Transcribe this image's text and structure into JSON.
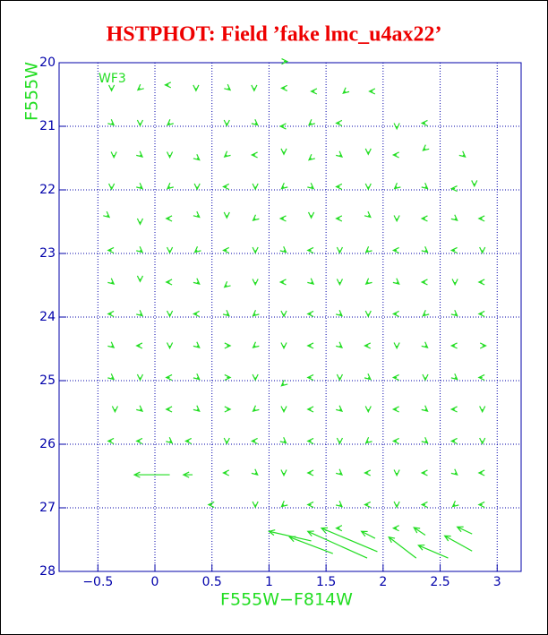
{
  "chart_data": {
    "type": "quiver",
    "title": "HSTPHOT: Field ’fake lmc_u4ax22’",
    "xlabel": "F555W−F814W",
    "ylabel": "F555W",
    "annotation": "WF3",
    "xlim": [
      -0.84,
      3.21
    ],
    "ylim": [
      20,
      28
    ],
    "y_inverted": true,
    "xticks": [
      {
        "value": -0.5,
        "label": "−0.5"
      },
      0,
      0.5,
      1,
      1.5,
      2,
      2.5,
      3
    ],
    "yticks": [
      20,
      21,
      22,
      23,
      24,
      25,
      26,
      27,
      28
    ],
    "grid": true,
    "color": "#22dd22",
    "axis_color": "#0000aa",
    "title_color": "#ee0000",
    "vectors": [
      [
        1.13,
        19.98,
        0.03,
        0
      ],
      [
        -0.38,
        20.4,
        0,
        0.04
      ],
      [
        -0.13,
        20.4,
        -0.02,
        0.03
      ],
      [
        0.12,
        20.35,
        -0.03,
        0
      ],
      [
        0.36,
        20.4,
        0,
        0.04
      ],
      [
        0.64,
        20.4,
        0.02,
        0.03
      ],
      [
        0.87,
        20.4,
        0,
        0.04
      ],
      [
        1.14,
        20.4,
        -0.03,
        0
      ],
      [
        1.4,
        20.45,
        -0.03,
        0
      ],
      [
        1.67,
        20.45,
        -0.02,
        0.03
      ],
      [
        1.91,
        20.45,
        -0.03,
        0
      ],
      [
        -0.38,
        20.95,
        0.02,
        0.03
      ],
      [
        -0.13,
        20.95,
        0,
        0.04
      ],
      [
        0.13,
        20.95,
        -0.02,
        0.03
      ],
      [
        0.63,
        20.95,
        0,
        0.04
      ],
      [
        0.88,
        20.95,
        0.02,
        0.03
      ],
      [
        1.13,
        21.0,
        -0.03,
        0
      ],
      [
        1.37,
        20.95,
        -0.02,
        0.03
      ],
      [
        1.62,
        20.95,
        -0.03,
        0
      ],
      [
        2.12,
        21.0,
        0,
        0.04
      ],
      [
        2.37,
        20.95,
        -0.03,
        0
      ],
      [
        -0.36,
        21.45,
        0,
        0.04
      ],
      [
        -0.13,
        21.45,
        0.02,
        0.03
      ],
      [
        0.13,
        21.45,
        0,
        0.04
      ],
      [
        0.37,
        21.5,
        0.02,
        0.03
      ],
      [
        0.63,
        21.45,
        -0.02,
        0.03
      ],
      [
        0.88,
        21.45,
        -0.03,
        0
      ],
      [
        1.13,
        21.4,
        0,
        0.04
      ],
      [
        1.37,
        21.5,
        -0.02,
        0.03
      ],
      [
        1.62,
        21.45,
        0.02,
        0.03
      ],
      [
        1.87,
        21.4,
        0,
        0.04
      ],
      [
        2.12,
        21.45,
        -0.03,
        0
      ],
      [
        2.37,
        21.35,
        -0.02,
        0.03
      ],
      [
        2.7,
        21.45,
        0.02,
        0.03
      ],
      [
        -0.38,
        21.95,
        0,
        0.04
      ],
      [
        -0.13,
        21.95,
        0.02,
        0.03
      ],
      [
        0.13,
        21.95,
        -0.02,
        0.03
      ],
      [
        0.37,
        21.95,
        0,
        0.04
      ],
      [
        0.63,
        21.95,
        -0.03,
        0
      ],
      [
        0.88,
        21.95,
        0,
        0.04
      ],
      [
        1.13,
        21.95,
        -0.02,
        0.03
      ],
      [
        1.37,
        21.95,
        0.02,
        0.03
      ],
      [
        1.62,
        21.95,
        -0.03,
        0
      ],
      [
        1.87,
        21.95,
        0,
        0.04
      ],
      [
        2.12,
        21.95,
        -0.02,
        0.03
      ],
      [
        2.37,
        21.95,
        0.02,
        0.03
      ],
      [
        2.63,
        21.98,
        -0.03,
        0
      ],
      [
        2.8,
        21.9,
        0,
        0.04
      ],
      [
        -0.42,
        22.4,
        0.02,
        0.03
      ],
      [
        -0.13,
        22.5,
        0,
        0.04
      ],
      [
        0.13,
        22.45,
        -0.03,
        0
      ],
      [
        0.37,
        22.4,
        0.02,
        0.03
      ],
      [
        0.63,
        22.4,
        0,
        0.04
      ],
      [
        0.88,
        22.45,
        -0.02,
        0.03
      ],
      [
        1.13,
        22.45,
        -0.03,
        0
      ],
      [
        1.37,
        22.4,
        0,
        0.04
      ],
      [
        1.62,
        22.45,
        -0.03,
        0
      ],
      [
        1.87,
        22.4,
        0.02,
        0.03
      ],
      [
        2.12,
        22.45,
        0,
        0.04
      ],
      [
        2.37,
        22.45,
        -0.03,
        0
      ],
      [
        2.63,
        22.45,
        0.02,
        0.03
      ],
      [
        2.87,
        22.45,
        -0.03,
        0
      ],
      [
        -0.38,
        22.95,
        -0.03,
        0
      ],
      [
        -0.13,
        22.95,
        0.02,
        0.03
      ],
      [
        0.13,
        22.95,
        0,
        0.04
      ],
      [
        0.37,
        22.95,
        -0.02,
        0.03
      ],
      [
        0.63,
        22.95,
        -0.03,
        0
      ],
      [
        0.88,
        22.95,
        0,
        0.04
      ],
      [
        1.13,
        22.95,
        0.02,
        0.03
      ],
      [
        1.37,
        22.95,
        -0.03,
        0
      ],
      [
        1.62,
        22.95,
        0,
        0.04
      ],
      [
        1.87,
        22.95,
        -0.02,
        0.03
      ],
      [
        2.12,
        22.95,
        -0.03,
        0
      ],
      [
        2.37,
        22.95,
        0.02,
        0.03
      ],
      [
        2.63,
        22.95,
        -0.03,
        0
      ],
      [
        2.87,
        22.95,
        0,
        0.04
      ],
      [
        -0.38,
        23.45,
        0.02,
        0.03
      ],
      [
        -0.13,
        23.4,
        0,
        0.04
      ],
      [
        0.13,
        23.45,
        -0.03,
        0
      ],
      [
        0.37,
        23.45,
        0.02,
        0.03
      ],
      [
        0.63,
        23.5,
        -0.02,
        0.03
      ],
      [
        0.88,
        23.45,
        0,
        0.04
      ],
      [
        1.13,
        23.45,
        -0.03,
        0
      ],
      [
        1.37,
        23.45,
        0.02,
        0.03
      ],
      [
        1.62,
        23.45,
        0,
        0.04
      ],
      [
        1.87,
        23.45,
        -0.02,
        0.03
      ],
      [
        2.12,
        23.45,
        0.02,
        0.03
      ],
      [
        2.37,
        23.45,
        -0.03,
        0
      ],
      [
        2.63,
        23.45,
        0,
        0.04
      ],
      [
        2.87,
        23.45,
        -0.03,
        0
      ],
      [
        -0.38,
        23.95,
        -0.03,
        0
      ],
      [
        -0.13,
        23.95,
        0.02,
        0.03
      ],
      [
        0.13,
        23.95,
        0,
        0.04
      ],
      [
        0.37,
        23.95,
        -0.03,
        0
      ],
      [
        0.63,
        23.95,
        0.02,
        0.03
      ],
      [
        0.88,
        23.95,
        -0.02,
        0.03
      ],
      [
        1.13,
        23.95,
        0,
        0.04
      ],
      [
        1.37,
        23.95,
        -0.03,
        0
      ],
      [
        1.62,
        23.95,
        0.02,
        0.03
      ],
      [
        1.87,
        23.95,
        0,
        0.04
      ],
      [
        2.12,
        23.95,
        -0.03,
        0
      ],
      [
        2.37,
        23.95,
        -0.02,
        0.03
      ],
      [
        2.63,
        23.95,
        0.02,
        0.03
      ],
      [
        2.87,
        23.95,
        -0.03,
        0
      ],
      [
        -0.38,
        24.45,
        0.02,
        0.03
      ],
      [
        -0.13,
        24.45,
        -0.03,
        0
      ],
      [
        0.13,
        24.45,
        0,
        0.04
      ],
      [
        0.37,
        24.45,
        0.02,
        0.03
      ],
      [
        0.63,
        24.45,
        0.03,
        0
      ],
      [
        0.88,
        24.45,
        -0.02,
        0.03
      ],
      [
        1.13,
        24.45,
        0,
        0.04
      ],
      [
        1.37,
        24.45,
        -0.03,
        0
      ],
      [
        1.62,
        24.45,
        0.02,
        0.03
      ],
      [
        1.87,
        24.45,
        -0.03,
        0
      ],
      [
        2.12,
        24.45,
        0,
        0.04
      ],
      [
        2.37,
        24.45,
        0.02,
        0.03
      ],
      [
        2.63,
        24.45,
        -0.03,
        0
      ],
      [
        2.87,
        24.45,
        0.03,
        0
      ],
      [
        -0.38,
        24.95,
        0.02,
        0.03
      ],
      [
        -0.13,
        24.95,
        0,
        0.04
      ],
      [
        0.13,
        24.95,
        -0.03,
        0
      ],
      [
        0.37,
        24.95,
        0.02,
        0.03
      ],
      [
        0.63,
        24.95,
        0.03,
        0
      ],
      [
        0.88,
        24.95,
        0,
        0.04
      ],
      [
        1.13,
        25.05,
        -0.02,
        0.03
      ],
      [
        1.37,
        24.95,
        -0.03,
        0
      ],
      [
        1.62,
        24.95,
        0,
        0.04
      ],
      [
        1.87,
        24.95,
        0.02,
        0.03
      ],
      [
        2.12,
        24.95,
        -0.03,
        0
      ],
      [
        2.37,
        24.95,
        0,
        0.04
      ],
      [
        2.63,
        24.95,
        0.02,
        0.03
      ],
      [
        2.87,
        24.95,
        -0.03,
        0
      ],
      [
        -0.35,
        25.45,
        0,
        0.04
      ],
      [
        -0.13,
        25.45,
        0.02,
        0.03
      ],
      [
        0.13,
        25.45,
        -0.03,
        0
      ],
      [
        0.37,
        25.45,
        0.02,
        0.03
      ],
      [
        0.63,
        25.45,
        0.03,
        0
      ],
      [
        0.88,
        25.45,
        -0.02,
        0.03
      ],
      [
        1.13,
        25.45,
        0,
        0.04
      ],
      [
        1.37,
        25.45,
        -0.03,
        0
      ],
      [
        1.62,
        25.45,
        0.02,
        0.03
      ],
      [
        1.87,
        25.45,
        0,
        0.04
      ],
      [
        2.12,
        25.45,
        -0.03,
        0
      ],
      [
        2.37,
        25.45,
        0.02,
        0.03
      ],
      [
        2.63,
        25.45,
        -0.03,
        0
      ],
      [
        2.87,
        25.45,
        0,
        0.04
      ],
      [
        -0.38,
        25.95,
        -0.03,
        0
      ],
      [
        -0.13,
        25.95,
        -0.03,
        0
      ],
      [
        0.13,
        25.95,
        0.02,
        0.03
      ],
      [
        0.3,
        25.95,
        -0.03,
        0
      ],
      [
        0.63,
        25.95,
        0,
        0.04
      ],
      [
        0.88,
        25.95,
        -0.03,
        0
      ],
      [
        1.13,
        25.95,
        0.02,
        0.03
      ],
      [
        1.37,
        25.95,
        -0.03,
        0
      ],
      [
        1.62,
        25.95,
        0,
        0.04
      ],
      [
        1.87,
        25.95,
        -0.02,
        0.03
      ],
      [
        2.12,
        25.95,
        -0.03,
        0
      ],
      [
        2.37,
        25.95,
        0.02,
        0.03
      ],
      [
        2.63,
        25.95,
        -0.03,
        0
      ],
      [
        2.87,
        25.95,
        0,
        0.04
      ],
      [
        0.13,
        26.48,
        -0.31,
        0
      ],
      [
        0.33,
        26.48,
        -0.08,
        0
      ],
      [
        0.63,
        26.45,
        -0.03,
        0
      ],
      [
        0.88,
        26.45,
        0.02,
        0.03
      ],
      [
        1.13,
        26.45,
        0,
        0.04
      ],
      [
        1.37,
        26.45,
        -0.03,
        0
      ],
      [
        1.62,
        26.45,
        0.02,
        0.03
      ],
      [
        1.87,
        26.45,
        -0.03,
        0
      ],
      [
        2.12,
        26.45,
        0,
        0.04
      ],
      [
        2.37,
        26.45,
        -0.03,
        0
      ],
      [
        2.63,
        26.45,
        0.02,
        0.03
      ],
      [
        2.87,
        26.45,
        -0.03,
        0
      ],
      [
        0.5,
        26.95,
        -0.03,
        0
      ],
      [
        0.88,
        26.95,
        0,
        0.04
      ],
      [
        1.13,
        26.95,
        -0.02,
        0.03
      ],
      [
        1.37,
        26.95,
        -0.03,
        0
      ],
      [
        1.62,
        26.95,
        0.02,
        0.03
      ],
      [
        1.87,
        26.95,
        -0.03,
        0
      ],
      [
        2.12,
        26.95,
        0,
        0.04
      ],
      [
        2.37,
        26.95,
        -0.03,
        0
      ],
      [
        2.63,
        26.95,
        -0.02,
        0.03
      ],
      [
        2.87,
        26.95,
        -0.03,
        0
      ],
      [
        1.37,
        27.52,
        -0.37,
        -0.15
      ],
      [
        1.56,
        27.72,
        -0.38,
        -0.26
      ],
      [
        1.86,
        27.79,
        -0.52,
        -0.42
      ],
      [
        1.95,
        27.69,
        -0.49,
        -0.37
      ],
      [
        1.93,
        27.48,
        -0.12,
        -0.11
      ],
      [
        2.29,
        27.79,
        -0.24,
        -0.33
      ],
      [
        2.37,
        27.43,
        -0.1,
        -0.12
      ],
      [
        2.57,
        27.79,
        -0.26,
        -0.2
      ],
      [
        2.78,
        27.68,
        -0.24,
        -0.24
      ],
      [
        2.78,
        27.41,
        -0.13,
        -0.11
      ],
      [
        2.12,
        27.32,
        -0.03,
        0
      ],
      [
        1.62,
        27.32,
        -0.03,
        0
      ]
    ]
  }
}
